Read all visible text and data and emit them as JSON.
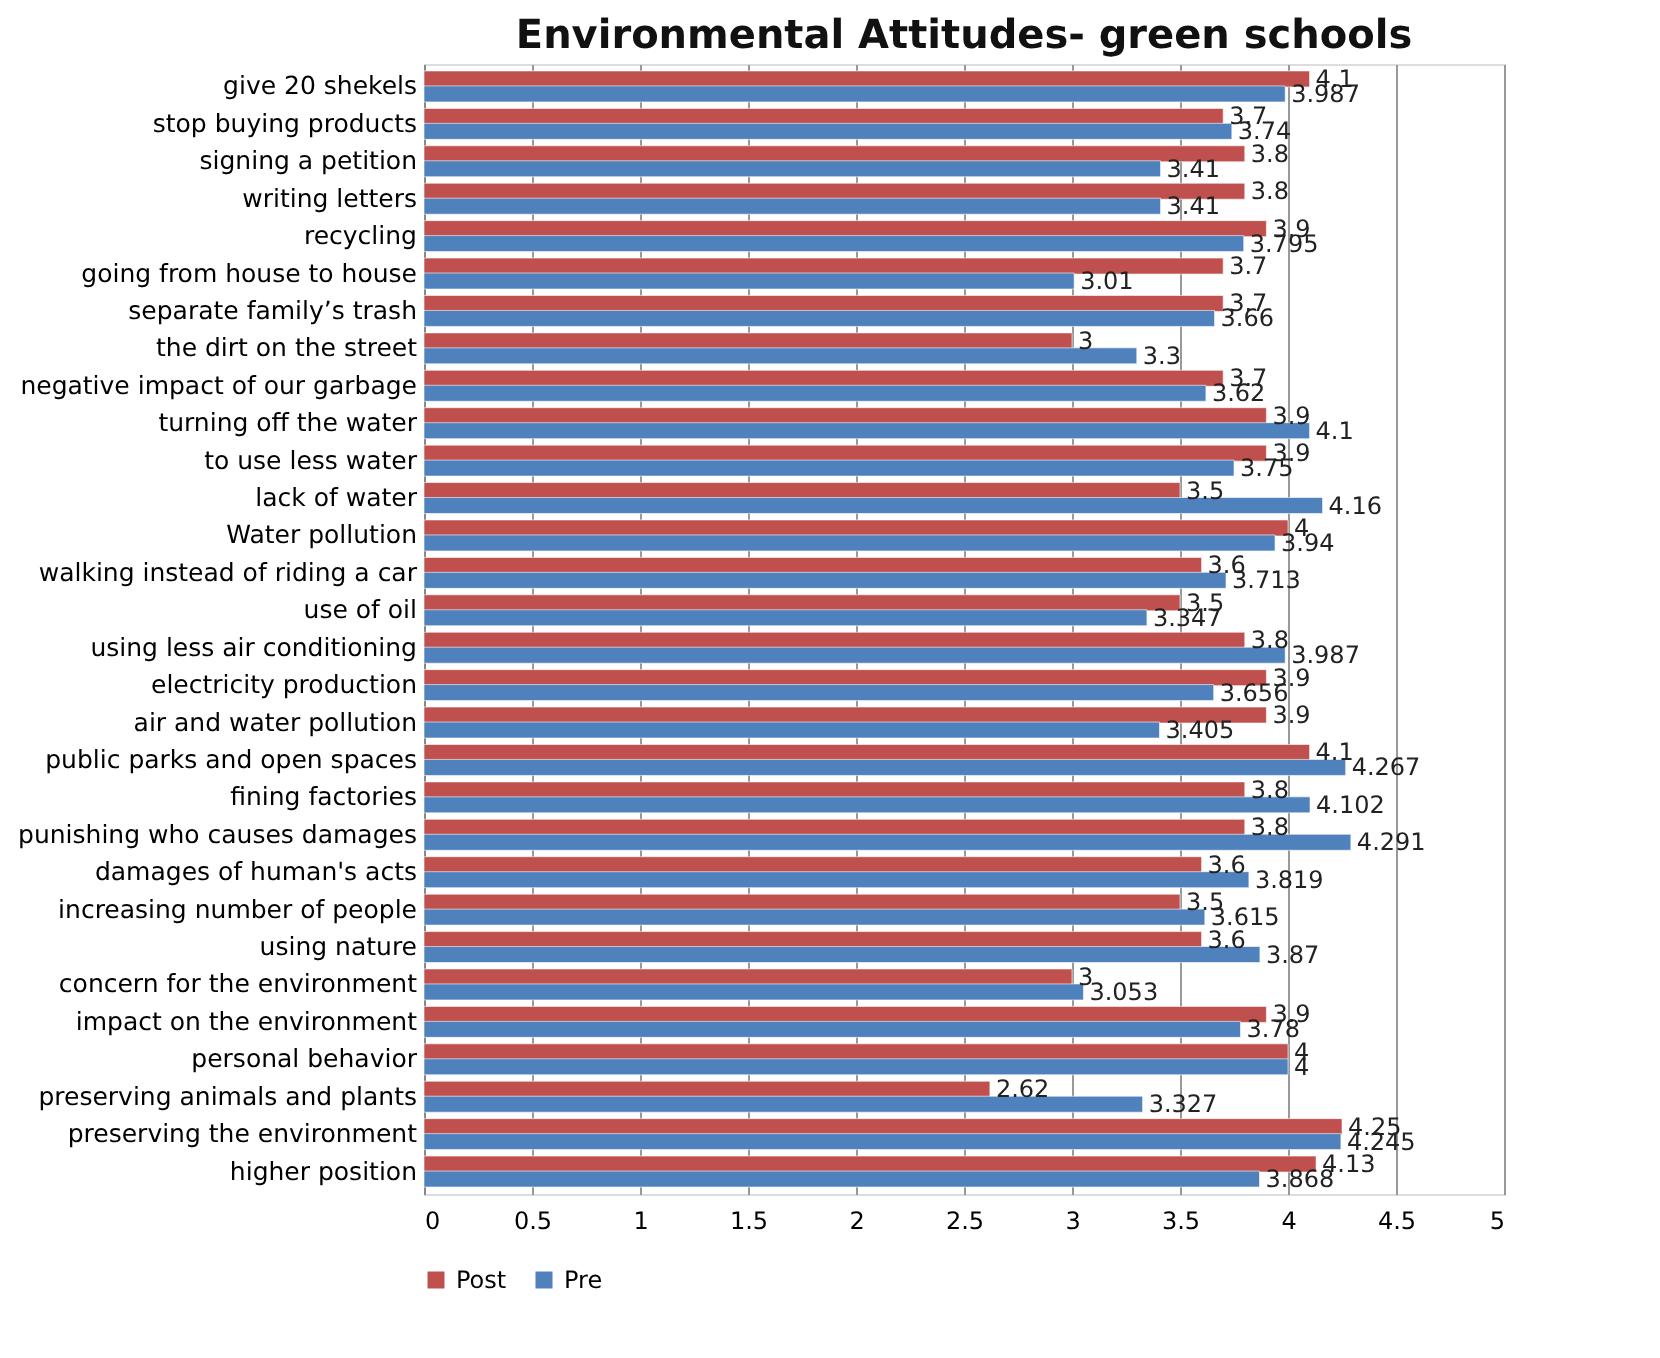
{
  "chart_data": {
    "type": "bar",
    "orientation": "horizontal",
    "title": "Environmental Attitudes- green schools",
    "categories": [
      "give 20 shekels",
      "stop buying products",
      "signing a petition",
      "writing letters",
      "recycling",
      "going from house to house",
      "separate family’s trash",
      "the dirt on the street",
      "negative impact of our garbage",
      "turning off the water",
      "to use less water",
      "lack of water",
      "Water pollution",
      "walking instead of riding a car",
      "use of oil",
      "using less air conditioning",
      "electricity production",
      "air and water pollution",
      "public parks and open spaces",
      "fining factories",
      "punishing who causes damages",
      "damages of human's acts",
      "increasing number of people",
      "using nature",
      "concern for the environment",
      "impact on the environment",
      "personal behavior",
      "preserving animals and plants",
      "preserving the environment",
      "higher position"
    ],
    "series": [
      {
        "name": "Post",
        "color": "#c0504d",
        "values": [
          4.1,
          3.7,
          3.8,
          3.8,
          3.9,
          3.7,
          3.7,
          3,
          3.7,
          3.9,
          3.9,
          3.5,
          4,
          3.6,
          3.5,
          3.8,
          3.9,
          3.9,
          4.1,
          3.8,
          3.8,
          3.6,
          3.5,
          3.6,
          3,
          3.9,
          4,
          2.62,
          4.25,
          4.13
        ]
      },
      {
        "name": "Pre",
        "color": "#4f81bd",
        "values": [
          3.987,
          3.74,
          3.41,
          3.41,
          3.795,
          3.01,
          3.66,
          3.3,
          3.62,
          4.1,
          3.75,
          4.16,
          3.94,
          3.713,
          3.347,
          3.987,
          3.656,
          3.405,
          4.267,
          4.102,
          4.291,
          3.819,
          3.615,
          3.87,
          3.053,
          3.78,
          4,
          3.327,
          4.245,
          3.868
        ]
      }
    ],
    "xlim": [
      0,
      5
    ],
    "xticks": [
      0,
      0.5,
      1,
      1.5,
      2,
      2.5,
      3,
      3.5,
      4,
      4.5,
      5
    ],
    "grid": "x",
    "legend": "bottom",
    "data_labels": true
  }
}
